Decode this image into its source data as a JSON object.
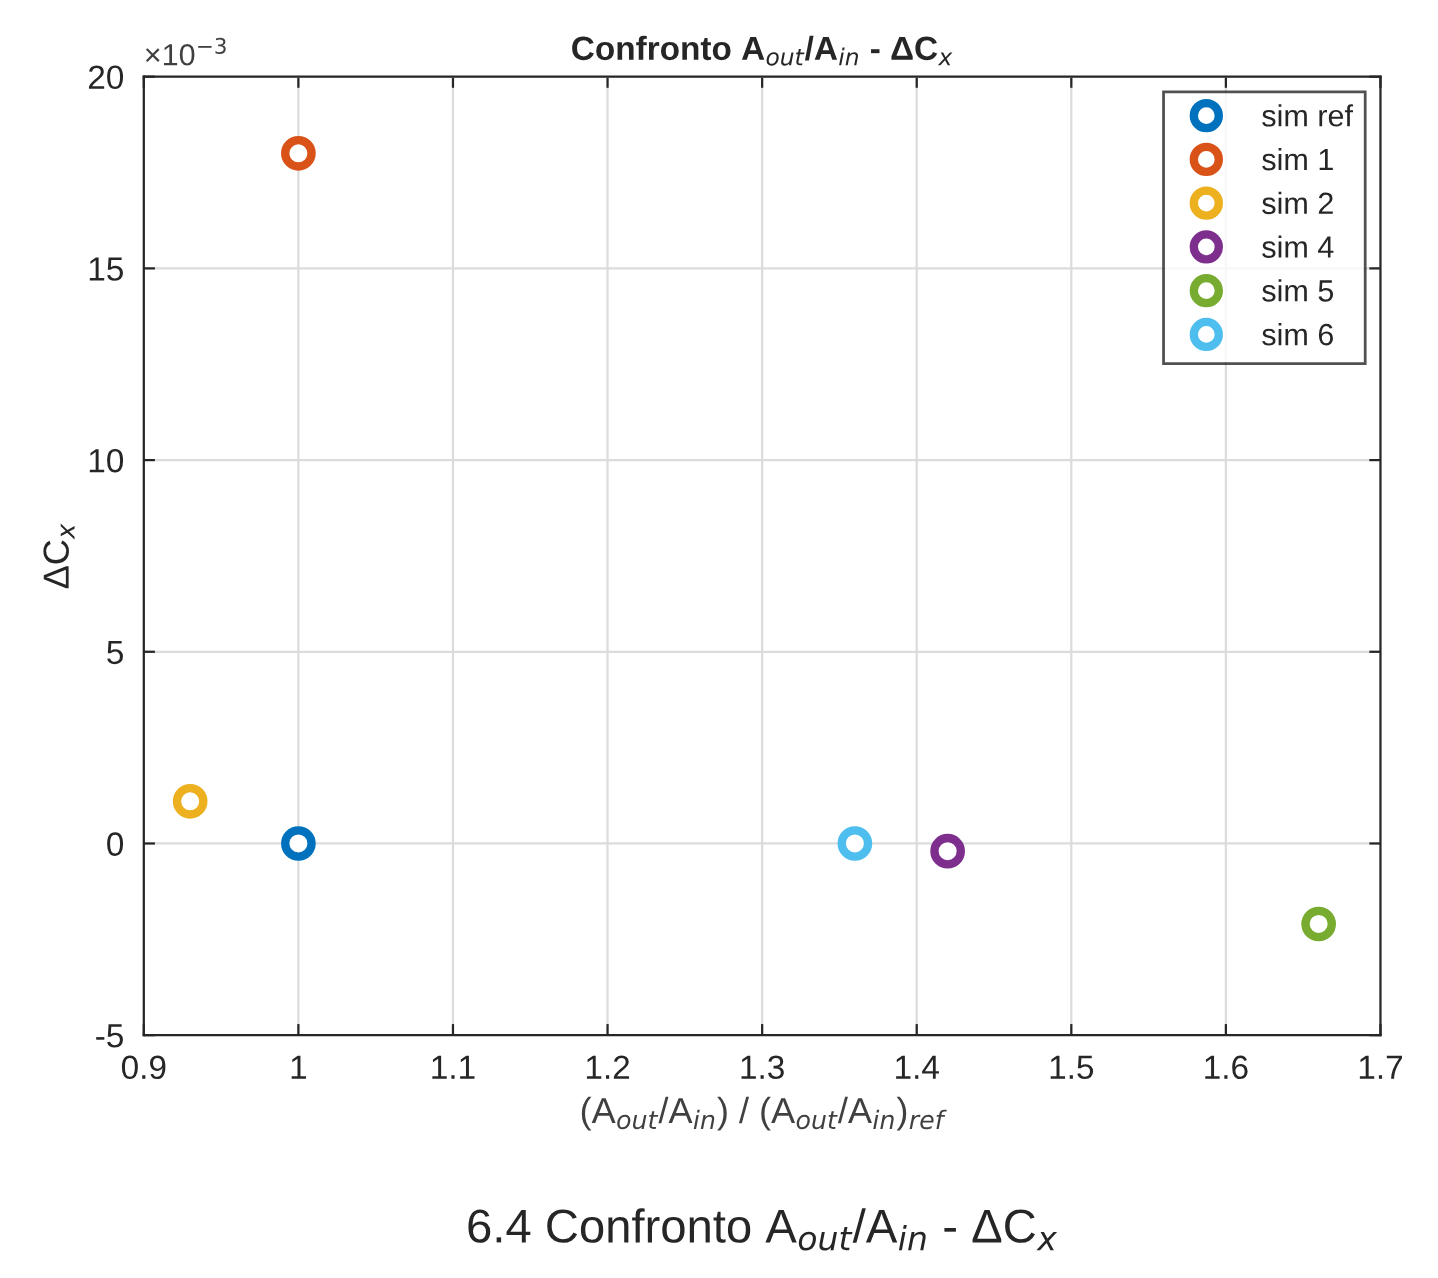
{
  "chart_data": {
    "type": "scatter",
    "title": "Confronto A$_{out}$/A$_{in}$ - ΔC$_{x}$",
    "xlabel": "(A$_{out}$/A$_{in}$) / (A$_{out}$/A$_{in}$)$_{ref}$",
    "ylabel": "ΔC$_{x}$",
    "series": [
      {
        "name": "sim ref",
        "color": "#0072bd",
        "x": [
          1.0
        ],
        "values": [
          0.0
        ]
      },
      {
        "name": "sim 1",
        "color": "#d95319",
        "x": [
          1.0
        ],
        "values": [
          18.0
        ]
      },
      {
        "name": "sim 2",
        "color": "#edb120",
        "x": [
          0.93
        ],
        "values": [
          1.1
        ]
      },
      {
        "name": "sim 4",
        "color": "#7e2f8e",
        "x": [
          1.42
        ],
        "values": [
          -0.2
        ]
      },
      {
        "name": "sim 5",
        "color": "#77ac30",
        "x": [
          1.66
        ],
        "values": [
          -2.1
        ]
      },
      {
        "name": "sim 6",
        "color": "#4dbeee",
        "x": [
          1.36
        ],
        "values": [
          0.0
        ]
      }
    ],
    "xlim": [
      0.9,
      1.7
    ],
    "xticks": [
      0.9,
      1,
      1.1,
      1.2,
      1.3,
      1.4,
      1.5,
      1.6,
      1.7
    ],
    "ylim": [
      -5,
      20
    ],
    "yticks": [
      -5,
      0,
      5,
      10,
      15,
      20
    ],
    "annotations": [
      "×10$^{−3}$",
      "6.4 Confronto A$_{out}$/A$_{in}$ - ΔC$_{x}$"
    ],
    "grid": true,
    "legend": "top right",
    "marker": "circle"
  }
}
